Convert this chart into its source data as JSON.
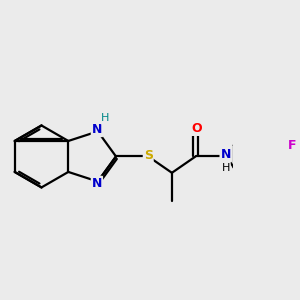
{
  "bg_color": "#ebebeb",
  "bond_color": "#000000",
  "bond_width": 1.6,
  "atom_colors": {
    "N": "#0000cc",
    "H_benz": "#008888",
    "S": "#ccaa00",
    "O": "#ff0000",
    "NH": "#0000cc",
    "H": "#000000",
    "F": "#cc00cc"
  },
  "fig_size": [
    3.0,
    3.0
  ],
  "dpi": 100
}
